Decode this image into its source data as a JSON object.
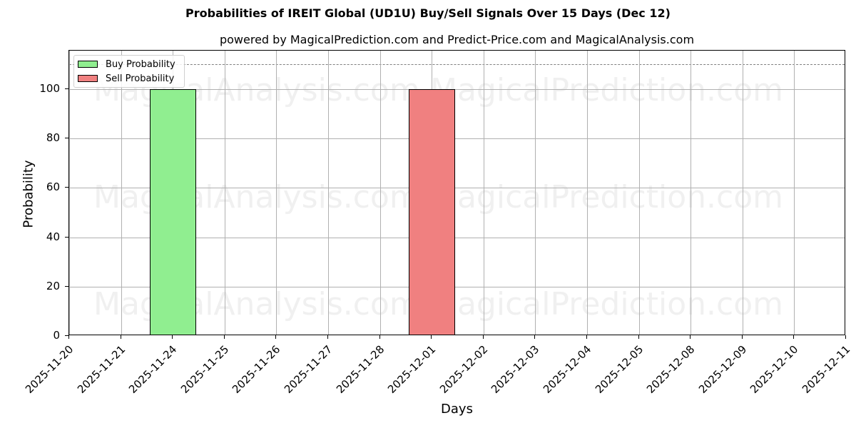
{
  "chart_data": {
    "type": "bar",
    "title": "Probabilities of IREIT Global (UD1U) Buy/Sell Signals Over 15 Days (Dec 12)",
    "subtitle": "powered by MagicalPrediction.com and Predict-Price.com and MagicalAnalysis.com",
    "xlabel": "Days",
    "ylabel": "Probability",
    "ylim": [
      0,
      115.6
    ],
    "yticks": [
      0,
      20,
      40,
      60,
      80,
      100
    ],
    "grid": true,
    "legend_position": "upper left",
    "threshold_line": {
      "y": 110,
      "style": "dashed",
      "color": "#808080"
    },
    "categories": [
      "2025-11-20",
      "2025-11-21",
      "2025-11-24",
      "2025-11-25",
      "2025-11-26",
      "2025-11-27",
      "2025-11-28",
      "2025-12-01",
      "2025-12-02",
      "2025-12-03",
      "2025-12-04",
      "2025-12-05",
      "2025-12-08",
      "2025-12-09",
      "2025-12-10",
      "2025-12-11"
    ],
    "series": [
      {
        "name": "Buy Probability",
        "color": "#90ee90",
        "values": [
          0,
          0,
          100,
          0,
          0,
          0,
          0,
          0,
          0,
          0,
          0,
          0,
          0,
          0,
          0,
          0
        ]
      },
      {
        "name": "Sell Probability",
        "color": "#f08080",
        "values": [
          0,
          0,
          0,
          0,
          0,
          0,
          0,
          100,
          0,
          0,
          0,
          0,
          0,
          0,
          0,
          0
        ]
      }
    ],
    "watermarks": [
      "MagicalAnalysis.com",
      "MagicalPrediction.com"
    ]
  },
  "legend": {
    "buy": "Buy Probability",
    "sell": "Sell Probability"
  },
  "ytick_labels": [
    "0",
    "20",
    "40",
    "60",
    "80",
    "100"
  ]
}
